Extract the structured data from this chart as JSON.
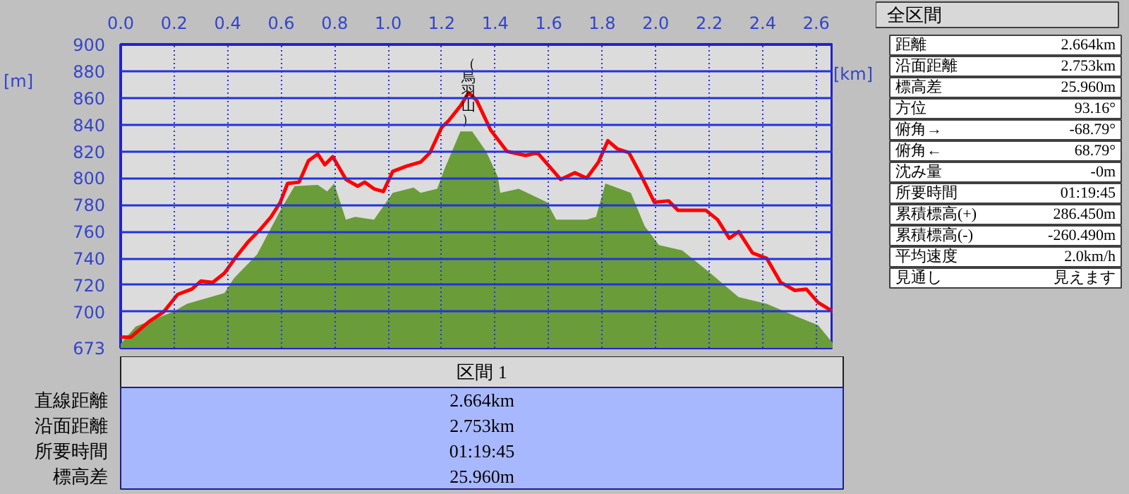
{
  "chart_data": [
    {
      "type": "area",
      "xlabel": "[km]",
      "ylabel": "[m]",
      "xlim": [
        0,
        2.664
      ],
      "ylim": [
        673,
        900
      ],
      "xticks": [
        {
          "value": 0,
          "label": "0.0"
        },
        0.2,
        0.4,
        0.6,
        0.8,
        {
          "value": 1,
          "label": "1.0"
        },
        1.2,
        1.4,
        1.6,
        1.8,
        {
          "value": 2,
          "label": "2.0"
        },
        2.2,
        2.4,
        2.6
      ],
      "yticks": [
        673,
        700,
        720,
        740,
        760,
        780,
        800,
        820,
        840,
        860,
        880,
        900
      ],
      "grid": true,
      "annotations": [
        {
          "text": "（烏羽山）",
          "x": 1.3,
          "y": 864
        }
      ],
      "series": [
        {
          "type": "area",
          "color": "#6a9c3a",
          "x": [
            0,
            0.056,
            0.196,
            0.248,
            0.388,
            0.423,
            0.51,
            0.597,
            0.65,
            0.737,
            0.772,
            0.798,
            0.842,
            0.877,
            0.947,
            1.017,
            1.095,
            1.121,
            1.183,
            1.209,
            1.27,
            1.314,
            1.366,
            1.41,
            1.419,
            1.488,
            1.593,
            1.628,
            1.742,
            1.777,
            1.812,
            1.907,
            1.959,
            2.012,
            2.099,
            2.204,
            2.31,
            2.415,
            2.52,
            2.607,
            2.664
          ],
          "values": [
            676,
            689,
            700,
            706,
            714,
            725,
            743,
            776,
            794,
            795,
            790,
            796,
            769,
            771,
            769,
            789,
            793,
            789,
            792,
            806,
            835,
            835,
            820,
            801,
            789,
            792,
            782,
            769,
            769,
            771,
            796,
            789,
            764,
            750,
            746,
            729,
            711,
            706,
            697,
            690,
            676
          ]
        },
        {
          "type": "line",
          "color": "#ff0000",
          "x": [
            0,
            0.038,
            0.108,
            0.161,
            0.213,
            0.266,
            0.3,
            0.344,
            0.388,
            0.431,
            0.475,
            0.519,
            0.562,
            0.597,
            0.624,
            0.667,
            0.702,
            0.737,
            0.763,
            0.793,
            0.842,
            0.886,
            0.912,
            0.947,
            0.982,
            1.017,
            1.069,
            1.121,
            1.156,
            1.2,
            1.226,
            1.27,
            1.301,
            1.331,
            1.383,
            1.444,
            1.514,
            1.558,
            1.645,
            1.698,
            1.742,
            1.786,
            1.821,
            1.856,
            1.9,
            1.943,
            1.995,
            2.048,
            2.083,
            2.187,
            2.231,
            2.275,
            2.31,
            2.362,
            2.415,
            2.467,
            2.52,
            2.563,
            2.607,
            2.664
          ],
          "values": [
            681,
            681,
            693,
            700,
            713,
            717,
            723,
            722,
            729,
            741,
            752,
            761,
            771,
            782,
            796,
            797,
            813,
            818,
            810,
            816,
            799,
            794,
            797,
            792,
            790,
            805,
            809,
            812,
            819,
            838,
            843,
            854,
            864,
            858,
            836,
            820,
            817,
            819,
            799,
            804,
            800,
            812,
            828,
            822,
            819,
            803,
            782,
            783,
            776,
            776,
            769,
            755,
            760,
            744,
            740,
            722,
            716,
            717,
            707,
            700
          ]
        }
      ]
    },
    {
      "type": "other",
      "title": "全区間",
      "categories": [
        "距離",
        "沿面距離",
        "標高差",
        "方位",
        "俯角→",
        "俯角←",
        "沈み量",
        "所要時間",
        "累積標高(+)",
        "累積標高(-)",
        "平均速度",
        "見通し"
      ],
      "value_labels": [
        "2.664km",
        "2.753km",
        "25.960m",
        "93.16°",
        "-68.79°",
        "68.79°",
        "-0m",
        "01:19:45",
        "286.450m",
        "-260.490m",
        "2.0km/h",
        "見えます"
      ]
    },
    {
      "type": "other",
      "title": "区間 1",
      "categories": [
        "直線距離",
        "沿面距離",
        "所要時間",
        "標高差"
      ],
      "value_labels": [
        "2.664km",
        "2.753km",
        "01:19:45",
        "25.960m"
      ]
    }
  ]
}
